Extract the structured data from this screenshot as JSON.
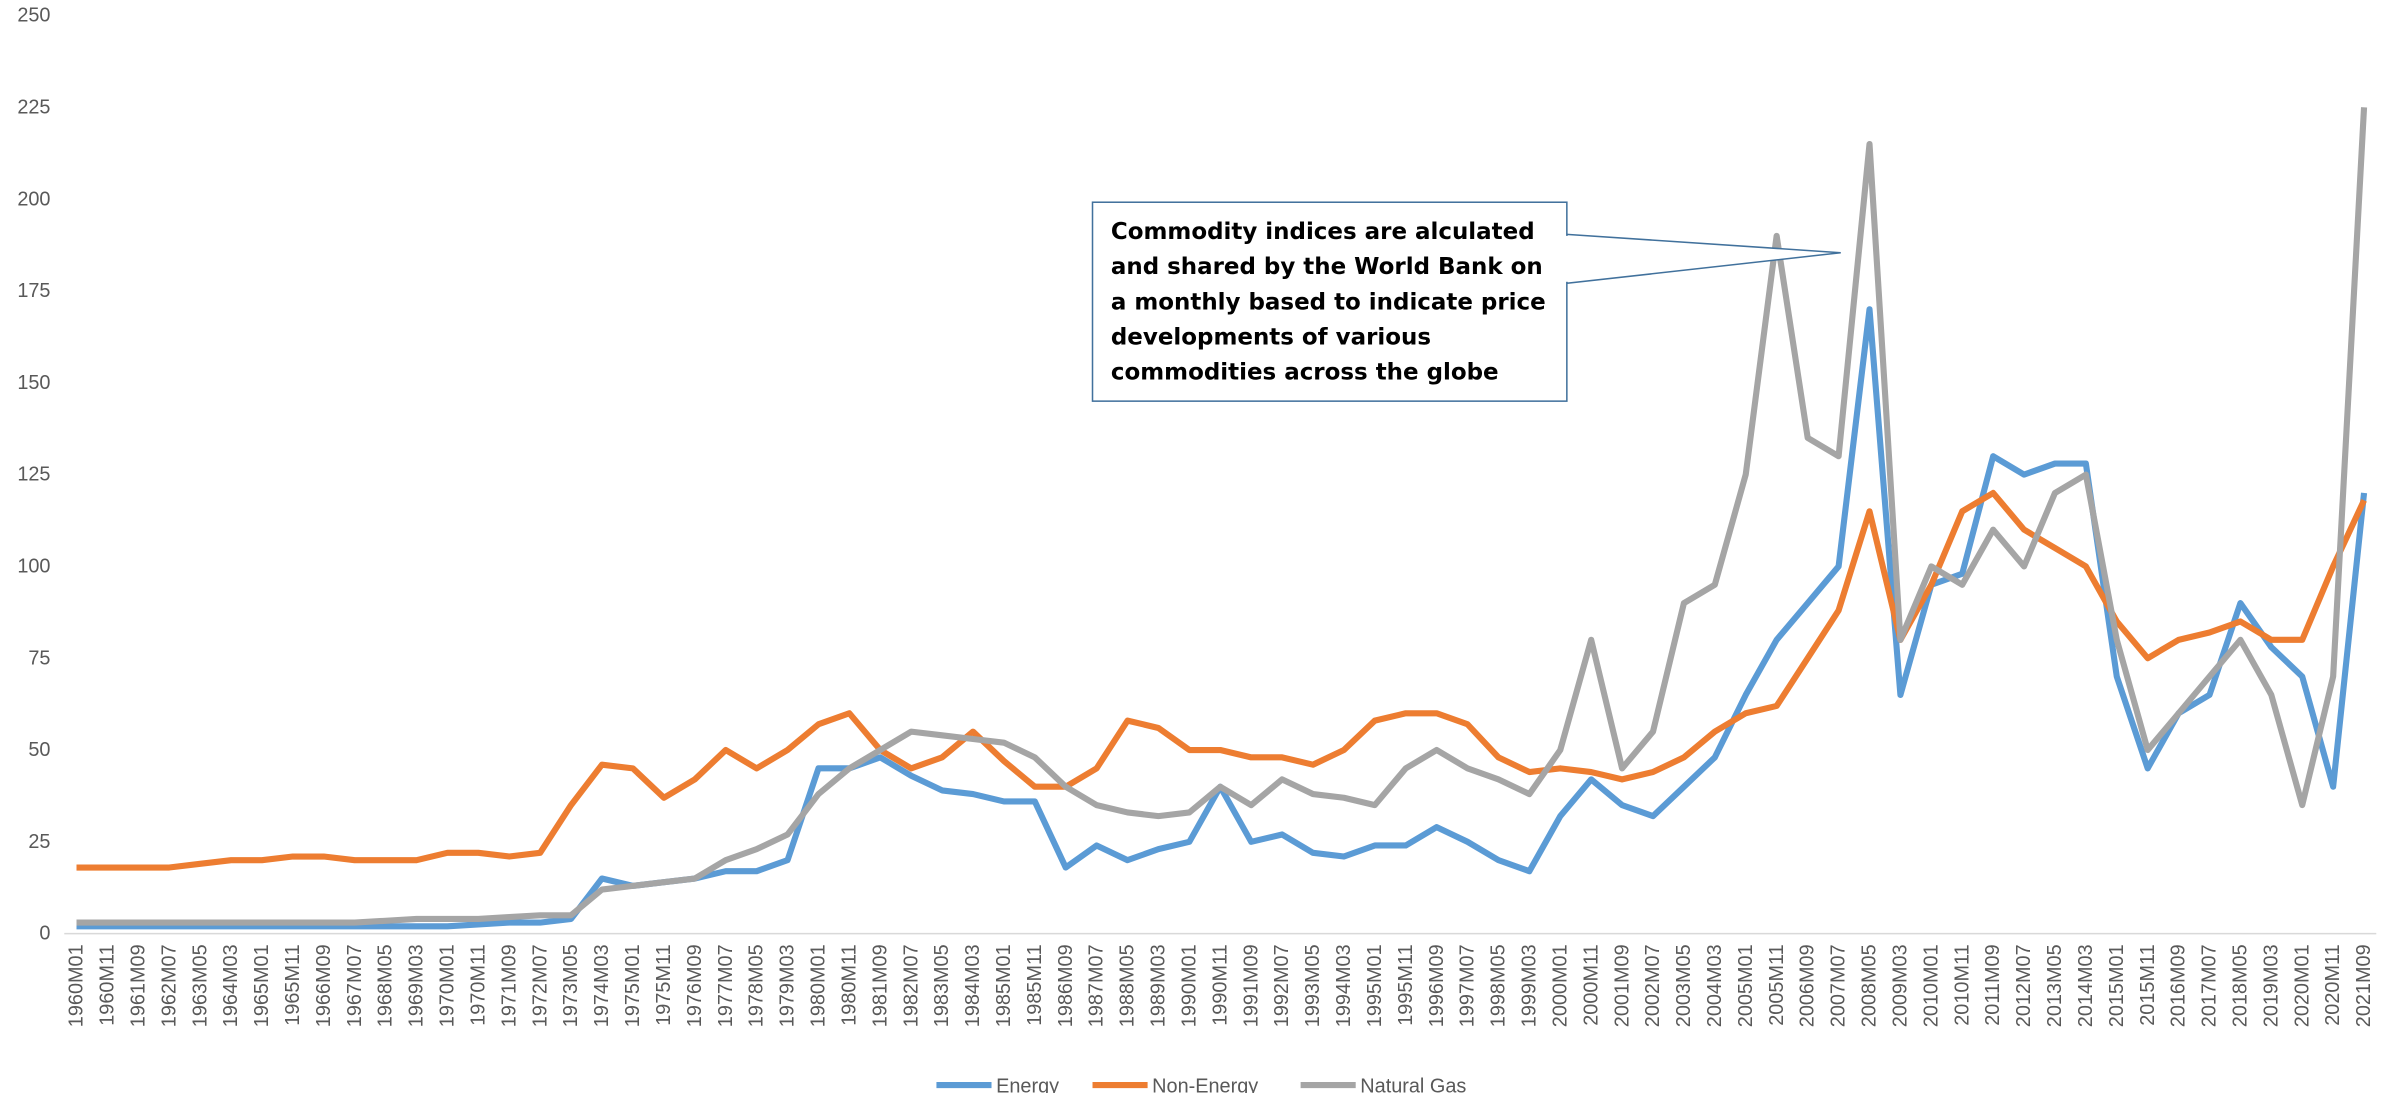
{
  "chart_data": {
    "type": "line",
    "categories": [
      "1960M01",
      "1960M11",
      "1961M09",
      "1962M07",
      "1963M05",
      "1964M03",
      "1965M01",
      "1965M11",
      "1966M09",
      "1967M07",
      "1968M05",
      "1969M03",
      "1970M01",
      "1970M11",
      "1971M09",
      "1972M07",
      "1973M05",
      "1974M03",
      "1975M01",
      "1975M11",
      "1976M09",
      "1977M07",
      "1978M05",
      "1979M03",
      "1980M01",
      "1980M11",
      "1981M09",
      "1982M07",
      "1983M05",
      "1984M03",
      "1985M01",
      "1985M11",
      "1986M09",
      "1987M07",
      "1988M05",
      "1989M03",
      "1990M01",
      "1990M11",
      "1991M09",
      "1992M07",
      "1993M05",
      "1994M03",
      "1995M01",
      "1995M11",
      "1996M09",
      "1997M07",
      "1998M05",
      "1999M03",
      "2000M01",
      "2000M11",
      "2001M09",
      "2002M07",
      "2003M05",
      "2004M03",
      "2005M01",
      "2005M11",
      "2006M09",
      "2007M07",
      "2008M05",
      "2009M03",
      "2010M01",
      "2010M11",
      "2011M09",
      "2012M07",
      "2013M05",
      "2014M03",
      "2015M01",
      "2015M11",
      "2016M09",
      "2017M07",
      "2018M05",
      "2019M03",
      "2020M01",
      "2020M11",
      "2021M09"
    ],
    "series": [
      {
        "name": "Energy",
        "color": "#5b9bd5",
        "values": [
          2,
          2,
          2,
          2,
          2,
          2,
          2,
          2,
          2,
          2,
          2,
          2,
          2,
          2.5,
          3,
          3,
          4,
          15,
          13,
          14,
          15,
          17,
          17,
          20,
          45,
          45,
          48,
          43,
          39,
          38,
          36,
          36,
          18,
          24,
          20,
          23,
          25,
          40,
          25,
          27,
          22,
          21,
          24,
          24,
          29,
          25,
          20,
          17,
          32,
          42,
          35,
          32,
          40,
          48,
          65,
          80,
          90,
          100,
          170,
          65,
          95,
          98,
          130,
          125,
          128,
          128,
          70,
          45,
          60,
          65,
          90,
          78,
          70,
          40,
          120
        ]
      },
      {
        "name": "Non-Energy",
        "color": "#ed7d31",
        "values": [
          18,
          18,
          18,
          18,
          19,
          20,
          20,
          21,
          21,
          20,
          20,
          20,
          22,
          22,
          21,
          22,
          35,
          46,
          45,
          37,
          42,
          50,
          45,
          50,
          57,
          60,
          50,
          45,
          48,
          55,
          47,
          40,
          40,
          45,
          58,
          56,
          50,
          50,
          48,
          48,
          46,
          50,
          58,
          60,
          60,
          57,
          48,
          44,
          45,
          44,
          42,
          44,
          48,
          55,
          60,
          62,
          75,
          88,
          115,
          80,
          95,
          115,
          120,
          110,
          105,
          100,
          85,
          75,
          80,
          82,
          85,
          80,
          80,
          100,
          118
        ]
      },
      {
        "name": "Natural Gas",
        "color": "#a5a5a5",
        "values": [
          3,
          3,
          3,
          3,
          3,
          3,
          3,
          3,
          3,
          3,
          3.5,
          4,
          4,
          4,
          4.5,
          5,
          5,
          12,
          13,
          14,
          15,
          20,
          23,
          27,
          38,
          45,
          50,
          55,
          54,
          53,
          52,
          48,
          40,
          35,
          33,
          32,
          33,
          40,
          35,
          42,
          38,
          37,
          35,
          45,
          50,
          45,
          42,
          38,
          50,
          80,
          45,
          55,
          90,
          95,
          125,
          190,
          135,
          130,
          215,
          80,
          100,
          95,
          110,
          100,
          120,
          125,
          80,
          50,
          60,
          70,
          80,
          65,
          35,
          70,
          225
        ]
      }
    ],
    "ylim": [
      0,
      250
    ],
    "yticks": [
      0,
      25,
      50,
      75,
      100,
      125,
      150,
      175,
      200,
      225,
      250
    ],
    "annotation": "Commodity indices are alculated and shared by the World Bank on a monthly based to indicate price developments of various commodities across the globe",
    "legend": "bottom"
  }
}
